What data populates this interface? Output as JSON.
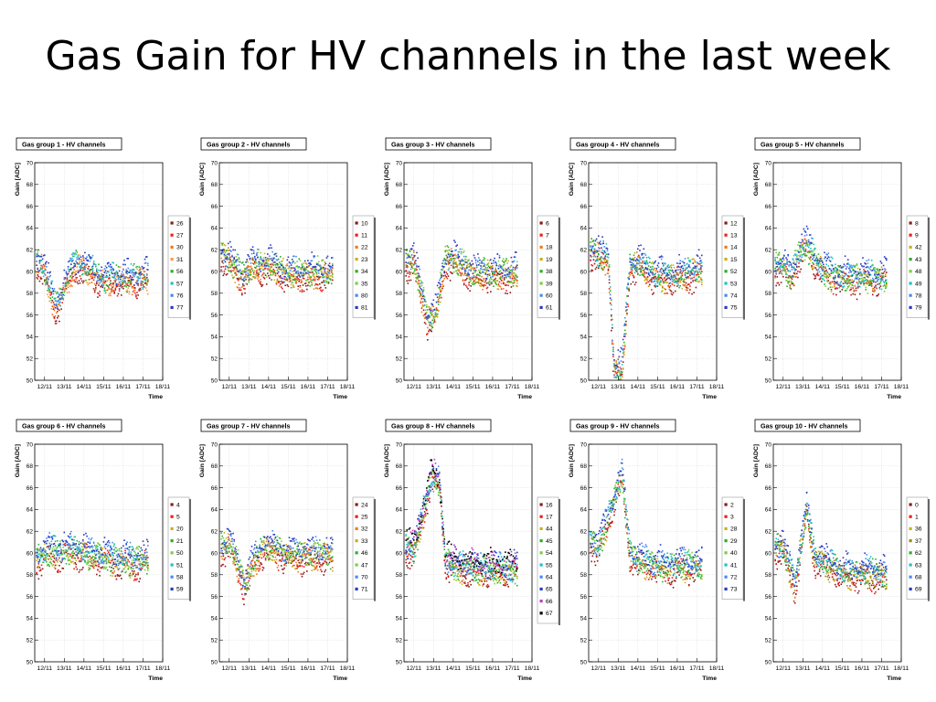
{
  "slide": {
    "title": "Gas Gain for HV channels in the last week"
  },
  "colors": {
    "frame": "#000000",
    "grid": "#cfcfcf",
    "background": "#ffffff"
  },
  "chart_data": [
    {
      "type": "scatter",
      "title": "Gas group 1 - HV channels",
      "xlabel": "Time",
      "ylabel": "Gain [ADC]",
      "x_ticks": [
        "12/11",
        "13/11",
        "14/11",
        "15/11",
        "16/11",
        "17/11",
        "18/11"
      ],
      "ylim": [
        50,
        70
      ],
      "y_ticks": [
        "50",
        "52",
        "54",
        "56",
        "58",
        "60",
        "62",
        "64",
        "66",
        "68",
        "70"
      ],
      "grid": true,
      "legend": "right",
      "series": [
        {
          "name": "26",
          "color": "#8b1a1a"
        },
        {
          "name": "27",
          "color": "#e8201a"
        },
        {
          "name": "30",
          "color": "#f07a1e"
        },
        {
          "name": "31",
          "color": "#ff9a40"
        },
        {
          "name": "56",
          "color": "#2ab02a"
        },
        {
          "name": "57",
          "color": "#1fc3c3"
        },
        {
          "name": "76",
          "color": "#4a8af0"
        },
        {
          "name": "77",
          "color": "#2a3ac0"
        }
      ],
      "level": [
        [
          11.6,
          61.0
        ],
        [
          12.0,
          60.0
        ],
        [
          12.6,
          56.5
        ],
        [
          13.0,
          58.5
        ],
        [
          13.5,
          60.5
        ],
        [
          14.0,
          60.3
        ],
        [
          15.0,
          59.2
        ],
        [
          16.0,
          59.3
        ],
        [
          17.0,
          59.4
        ]
      ]
    },
    {
      "type": "scatter",
      "title": "Gas group 2 - HV channels",
      "xlabel": "Time",
      "ylabel": "Gain [ADC]",
      "x_ticks": [
        "12/11",
        "13/11",
        "14/11",
        "15/11",
        "16/11",
        "17/11",
        "18/11"
      ],
      "ylim": [
        50,
        70
      ],
      "y_ticks": [
        "50",
        "52",
        "54",
        "56",
        "58",
        "60",
        "62",
        "64",
        "66",
        "68",
        "70"
      ],
      "grid": true,
      "legend": "right",
      "series": [
        {
          "name": "10",
          "color": "#8b1a1a"
        },
        {
          "name": "11",
          "color": "#e8201a"
        },
        {
          "name": "22",
          "color": "#f07a1e"
        },
        {
          "name": "23",
          "color": "#c8b020"
        },
        {
          "name": "34",
          "color": "#2ab02a"
        },
        {
          "name": "35",
          "color": "#7ad040"
        },
        {
          "name": "80",
          "color": "#4a8af0"
        },
        {
          "name": "81",
          "color": "#2a3ac0"
        }
      ],
      "level": [
        [
          11.6,
          61.5
        ],
        [
          12.0,
          61.0
        ],
        [
          12.7,
          59.5
        ],
        [
          13.2,
          60.5
        ],
        [
          14.0,
          60.5
        ],
        [
          15.0,
          59.8
        ],
        [
          16.0,
          59.8
        ],
        [
          17.0,
          59.8
        ]
      ]
    },
    {
      "type": "scatter",
      "title": "Gas group 3 - HV channels",
      "xlabel": "Time",
      "ylabel": "Gain [ADC]",
      "x_ticks": [
        "12/11",
        "13/11",
        "14/11",
        "15/11",
        "16/11",
        "17/11",
        "18/11"
      ],
      "ylim": [
        50,
        70
      ],
      "y_ticks": [
        "50",
        "52",
        "54",
        "56",
        "58",
        "60",
        "62",
        "64",
        "66",
        "68",
        "70"
      ],
      "grid": true,
      "legend": "right",
      "series": [
        {
          "name": "6",
          "color": "#8b1a1a"
        },
        {
          "name": "7",
          "color": "#e8201a"
        },
        {
          "name": "18",
          "color": "#f07a1e"
        },
        {
          "name": "19",
          "color": "#c8b020"
        },
        {
          "name": "38",
          "color": "#2ab02a"
        },
        {
          "name": "39",
          "color": "#7ad040"
        },
        {
          "name": "60",
          "color": "#4a8af0"
        },
        {
          "name": "61",
          "color": "#2a3ac0"
        }
      ],
      "level": [
        [
          11.6,
          60.8
        ],
        [
          12.0,
          61.0
        ],
        [
          12.7,
          55.5
        ],
        [
          13.1,
          56.0
        ],
        [
          13.6,
          61.0
        ],
        [
          14.0,
          61.0
        ],
        [
          15.0,
          59.8
        ],
        [
          16.0,
          59.8
        ],
        [
          17.0,
          59.8
        ]
      ]
    },
    {
      "type": "scatter",
      "title": "Gas group 4 - HV channels",
      "xlabel": "Time",
      "ylabel": "Gain [ADC]",
      "x_ticks": [
        "12/11",
        "13/11",
        "14/11",
        "15/11",
        "16/11",
        "17/11",
        "18/11"
      ],
      "ylim": [
        50,
        70
      ],
      "y_ticks": [
        "50",
        "52",
        "54",
        "56",
        "58",
        "60",
        "62",
        "64",
        "66",
        "68",
        "70"
      ],
      "grid": true,
      "legend": "right",
      "series": [
        {
          "name": "12",
          "color": "#8b1a1a"
        },
        {
          "name": "13",
          "color": "#e8201a"
        },
        {
          "name": "14",
          "color": "#f07a1e"
        },
        {
          "name": "15",
          "color": "#c8b020"
        },
        {
          "name": "52",
          "color": "#2ab02a"
        },
        {
          "name": "53",
          "color": "#1fc3c3"
        },
        {
          "name": "74",
          "color": "#4a8af0"
        },
        {
          "name": "75",
          "color": "#2a3ac0"
        }
      ],
      "level": [
        [
          11.6,
          62.0
        ],
        [
          12.0,
          61.5
        ],
        [
          12.5,
          61.0
        ],
        [
          12.8,
          51.0
        ],
        [
          13.2,
          51.0
        ],
        [
          13.6,
          60.5
        ],
        [
          14.0,
          60.8
        ],
        [
          15.0,
          59.5
        ],
        [
          16.0,
          59.6
        ],
        [
          17.0,
          60.0
        ]
      ]
    },
    {
      "type": "scatter",
      "title": "Gas group 5 - HV channels",
      "xlabel": "Time",
      "ylabel": "Gain [ADC]",
      "x_ticks": [
        "12/11",
        "13/11",
        "14/11",
        "15/11",
        "16/11",
        "17/11",
        "18/11"
      ],
      "ylim": [
        50,
        70
      ],
      "y_ticks": [
        "50",
        "52",
        "54",
        "56",
        "58",
        "60",
        "62",
        "64",
        "66",
        "68",
        "70"
      ],
      "grid": true,
      "legend": "right",
      "series": [
        {
          "name": "8",
          "color": "#8b1a1a"
        },
        {
          "name": "9",
          "color": "#e8201a"
        },
        {
          "name": "42",
          "color": "#c8b020"
        },
        {
          "name": "43",
          "color": "#2ab02a"
        },
        {
          "name": "48",
          "color": "#7ad040"
        },
        {
          "name": "49",
          "color": "#1fc3c3"
        },
        {
          "name": "78",
          "color": "#4a8af0"
        },
        {
          "name": "79",
          "color": "#2a3ac0"
        }
      ],
      "level": [
        [
          11.6,
          60.5
        ],
        [
          12.0,
          60.5
        ],
        [
          12.4,
          59.5
        ],
        [
          12.8,
          61.5
        ],
        [
          13.2,
          62.5
        ],
        [
          13.6,
          61.0
        ],
        [
          14.0,
          60.0
        ],
        [
          15.0,
          59.4
        ],
        [
          16.0,
          59.4
        ],
        [
          17.0,
          59.4
        ]
      ]
    },
    {
      "type": "scatter",
      "title": "Gas group 6 - HV channels",
      "xlabel": "Time",
      "ylabel": "Gain [ADC]",
      "x_ticks": [
        "12/11",
        "13/11",
        "14/11",
        "15/11",
        "16/11",
        "17/11",
        "18/11"
      ],
      "ylim": [
        50,
        70
      ],
      "y_ticks": [
        "50",
        "52",
        "54",
        "56",
        "58",
        "60",
        "62",
        "64",
        "66",
        "68",
        "70"
      ],
      "grid": true,
      "legend": "right",
      "series": [
        {
          "name": "4",
          "color": "#8b1a1a"
        },
        {
          "name": "5",
          "color": "#e8201a"
        },
        {
          "name": "20",
          "color": "#c8b020"
        },
        {
          "name": "21",
          "color": "#2ab02a"
        },
        {
          "name": "50",
          "color": "#7ad040"
        },
        {
          "name": "51",
          "color": "#1fc3c3"
        },
        {
          "name": "58",
          "color": "#4a8af0"
        },
        {
          "name": "59",
          "color": "#2a3ac0"
        }
      ],
      "level": [
        [
          11.6,
          59.5
        ],
        [
          12.0,
          60.0
        ],
        [
          13.6,
          60.2
        ],
        [
          14.0,
          60.0
        ],
        [
          15.0,
          59.5
        ],
        [
          16.0,
          59.3
        ],
        [
          17.0,
          59.3
        ]
      ]
    },
    {
      "type": "scatter",
      "title": "Gas group 7 - HV channels",
      "xlabel": "Time",
      "ylabel": "Gain [ADC]",
      "x_ticks": [
        "12/11",
        "13/11",
        "14/11",
        "15/11",
        "16/11",
        "17/11",
        "18/11"
      ],
      "ylim": [
        50,
        70
      ],
      "y_ticks": [
        "50",
        "52",
        "54",
        "56",
        "58",
        "60",
        "62",
        "64",
        "66",
        "68",
        "70"
      ],
      "grid": true,
      "legend": "right",
      "series": [
        {
          "name": "24",
          "color": "#8b1a1a"
        },
        {
          "name": "25",
          "color": "#e8201a"
        },
        {
          "name": "32",
          "color": "#f07a1e"
        },
        {
          "name": "33",
          "color": "#c8b020"
        },
        {
          "name": "46",
          "color": "#2ab02a"
        },
        {
          "name": "47",
          "color": "#7ad040"
        },
        {
          "name": "70",
          "color": "#4a8af0"
        },
        {
          "name": "71",
          "color": "#2a3ac0"
        }
      ],
      "level": [
        [
          11.6,
          60.5
        ],
        [
          12.0,
          61.0
        ],
        [
          12.8,
          57.0
        ],
        [
          13.2,
          59.0
        ],
        [
          13.8,
          60.5
        ],
        [
          14.2,
          60.3
        ],
        [
          15.0,
          59.8
        ],
        [
          16.0,
          59.8
        ],
        [
          17.0,
          59.8
        ]
      ]
    },
    {
      "type": "scatter",
      "title": "Gas group 8 - HV channels",
      "xlabel": "Time",
      "ylabel": "Gain [ADC]",
      "x_ticks": [
        "12/11",
        "13/11",
        "14/11",
        "15/11",
        "16/11",
        "17/11",
        "18/11"
      ],
      "ylim": [
        50,
        70
      ],
      "y_ticks": [
        "50",
        "52",
        "54",
        "56",
        "58",
        "60",
        "62",
        "64",
        "66",
        "68",
        "70"
      ],
      "grid": true,
      "legend": "right",
      "series": [
        {
          "name": "16",
          "color": "#8b1a1a"
        },
        {
          "name": "17",
          "color": "#e8201a"
        },
        {
          "name": "44",
          "color": "#c8b020"
        },
        {
          "name": "45",
          "color": "#2ab02a"
        },
        {
          "name": "54",
          "color": "#7ad040"
        },
        {
          "name": "55",
          "color": "#1fc3c3"
        },
        {
          "name": "64",
          "color": "#4a8af0"
        },
        {
          "name": "65",
          "color": "#2a3ac0"
        },
        {
          "name": "66",
          "color": "#c040c0"
        },
        {
          "name": "67",
          "color": "#000000"
        }
      ],
      "level": [
        [
          11.6,
          60.5
        ],
        [
          12.0,
          60.2
        ],
        [
          12.9,
          67.0
        ],
        [
          13.3,
          66.5
        ],
        [
          13.6,
          59.5
        ],
        [
          14.0,
          59.0
        ],
        [
          15.0,
          58.6
        ],
        [
          16.0,
          58.6
        ],
        [
          17.0,
          58.6
        ]
      ]
    },
    {
      "type": "scatter",
      "title": "Gas group 9 - HV channels",
      "xlabel": "Time",
      "ylabel": "Gain [ADC]",
      "x_ticks": [
        "12/11",
        "13/11",
        "14/11",
        "15/11",
        "16/11",
        "17/11",
        "18/11"
      ],
      "ylim": [
        50,
        70
      ],
      "y_ticks": [
        "50",
        "52",
        "54",
        "56",
        "58",
        "60",
        "62",
        "64",
        "66",
        "68",
        "70"
      ],
      "grid": true,
      "legend": "right",
      "series": [
        {
          "name": "2",
          "color": "#8b1a1a"
        },
        {
          "name": "3",
          "color": "#e8201a"
        },
        {
          "name": "28",
          "color": "#c8b020"
        },
        {
          "name": "29",
          "color": "#2ab02a"
        },
        {
          "name": "40",
          "color": "#7ad040"
        },
        {
          "name": "41",
          "color": "#1fc3c3"
        },
        {
          "name": "72",
          "color": "#4a8af0"
        },
        {
          "name": "73",
          "color": "#2a3ac0"
        }
      ],
      "level": [
        [
          11.6,
          61.0
        ],
        [
          12.0,
          60.5
        ],
        [
          12.8,
          65.0
        ],
        [
          13.2,
          67.0
        ],
        [
          13.6,
          60.0
        ],
        [
          14.0,
          59.3
        ],
        [
          15.0,
          58.8
        ],
        [
          16.0,
          58.8
        ],
        [
          17.0,
          58.8
        ]
      ]
    },
    {
      "type": "scatter",
      "title": "Gas group 10 - HV channels",
      "xlabel": "Time",
      "ylabel": "Gain [ADC]",
      "x_ticks": [
        "12/11",
        "13/11",
        "14/11",
        "15/11",
        "16/11",
        "17/11",
        "18/11"
      ],
      "ylim": [
        50,
        70
      ],
      "y_ticks": [
        "50",
        "52",
        "54",
        "56",
        "58",
        "60",
        "62",
        "64",
        "66",
        "68",
        "70"
      ],
      "grid": true,
      "legend": "right",
      "series": [
        {
          "name": "0",
          "color": "#8b1a1a"
        },
        {
          "name": "1",
          "color": "#e8201a"
        },
        {
          "name": "36",
          "color": "#c8b020"
        },
        {
          "name": "37",
          "color": "#9a8a20"
        },
        {
          "name": "62",
          "color": "#2ab02a"
        },
        {
          "name": "63",
          "color": "#1fc3c3"
        },
        {
          "name": "68",
          "color": "#4a8af0"
        },
        {
          "name": "69",
          "color": "#2a3ac0"
        }
      ],
      "level": [
        [
          11.6,
          60.5
        ],
        [
          12.0,
          60.5
        ],
        [
          12.6,
          57.0
        ],
        [
          13.2,
          64.0
        ],
        [
          13.6,
          59.5
        ],
        [
          14.0,
          59.2
        ],
        [
          15.0,
          58.2
        ],
        [
          16.0,
          58.2
        ],
        [
          17.0,
          58.0
        ]
      ]
    }
  ]
}
